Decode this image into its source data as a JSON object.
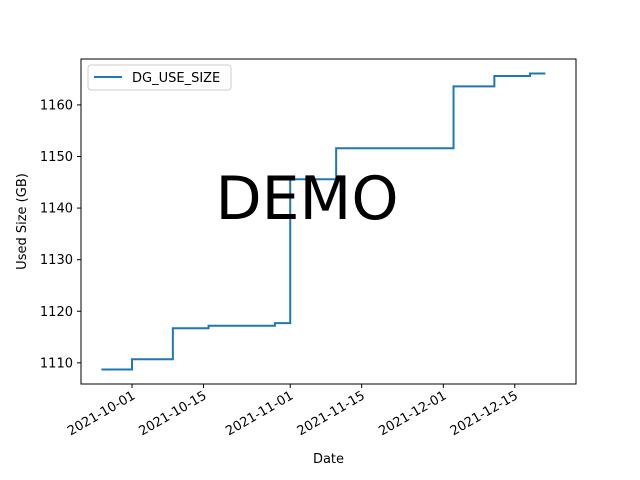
{
  "chart_data": {
    "type": "line",
    "xlabel": "Date",
    "ylabel": "Used Size (GB)",
    "xlim": [
      "2021-09-21",
      "2021-12-27"
    ],
    "ylim": [
      1105.9,
      1168.9
    ],
    "x_ticks": [
      "2021-10-01",
      "2021-10-15",
      "2021-11-01",
      "2021-11-15",
      "2021-12-01",
      "2021-12-15"
    ],
    "y_ticks": [
      1110,
      1120,
      1130,
      1140,
      1150,
      1160
    ],
    "legend": {
      "position": "top-left",
      "entries": [
        "DG_USE_SIZE"
      ]
    },
    "grid": false,
    "step": "post",
    "series": [
      {
        "name": "DG_USE_SIZE",
        "color": "#1f77b4",
        "x": [
          "2021-09-25",
          "2021-10-01",
          "2021-10-09",
          "2021-10-16",
          "2021-10-29",
          "2021-11-01",
          "2021-11-10",
          "2021-12-03",
          "2021-12-11",
          "2021-12-18",
          "2021-12-21"
        ],
        "y": [
          1108.7,
          1110.7,
          1116.7,
          1117.2,
          1117.7,
          1145.6,
          1151.6,
          1163.6,
          1165.6,
          1166.1,
          1166.1
        ]
      }
    ]
  },
  "watermark": "DEMO"
}
